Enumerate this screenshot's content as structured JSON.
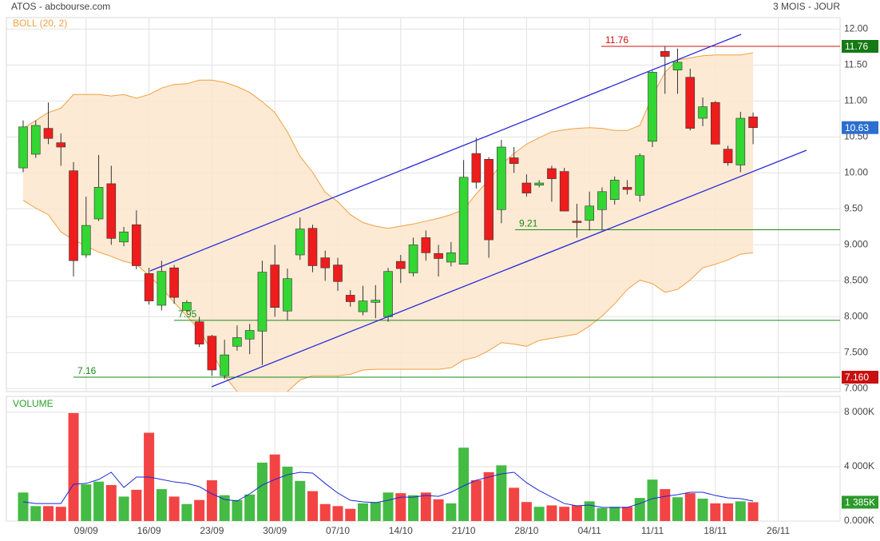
{
  "chart_data": {
    "type": "candlestick",
    "title": "ATOS - abcbourse.com",
    "subtitle": "3 MOIS - JOUR",
    "categories": [
      null,
      null,
      null,
      null,
      null,
      "09/09",
      null,
      null,
      null,
      null,
      "16/09",
      null,
      null,
      null,
      null,
      "23/09",
      null,
      null,
      null,
      null,
      "30/09",
      null,
      null,
      null,
      null,
      "07/10",
      null,
      null,
      null,
      null,
      "14/10",
      null,
      null,
      null,
      null,
      "21/10",
      null,
      null,
      null,
      null,
      "28/10",
      null,
      null,
      null,
      null,
      "04/11",
      null,
      null,
      null,
      null,
      "11/11",
      null,
      null,
      null,
      null,
      "18/11",
      null,
      null,
      null,
      null,
      "26/11"
    ],
    "open": [
      10.07,
      10.26,
      10.62,
      10.42,
      10.03,
      8.86,
      9.36,
      9.85,
      9.04,
      9.28,
      8.6,
      8.16,
      8.68,
      8.09,
      7.93,
      7.73,
      7.18,
      7.59,
      7.69,
      7.8,
      8.72,
      8.08,
      8.86,
      9.23,
      8.82,
      8.72,
      8.3,
      8.07,
      8.2,
      8.0,
      8.77,
      8.61,
      9.1,
      8.88,
      8.76,
      8.73,
      10.27,
      10.19,
      9.49,
      10.21,
      9.86,
      9.83,
      10.06,
      10.02,
      9.33,
      9.34,
      9.49,
      9.63,
      9.8,
      9.69,
      10.44,
      11.69,
      11.43,
      11.33,
      10.76,
      10.98,
      10.33,
      10.11,
      10.78,
      null,
      null
    ],
    "high": [
      10.73,
      10.73,
      10.98,
      10.55,
      10.15,
      9.67,
      10.25,
      10.1,
      9.25,
      9.48,
      8.68,
      8.78,
      8.72,
      8.23,
      8.0,
      7.75,
      7.68,
      7.88,
      7.9,
      8.78,
      9.0,
      8.67,
      9.38,
      9.28,
      8.92,
      8.82,
      8.37,
      8.43,
      8.44,
      8.68,
      8.86,
      9.1,
      9.2,
      9.0,
      9.04,
      10.18,
      10.49,
      10.22,
      10.46,
      10.36,
      9.98,
      9.9,
      10.1,
      10.07,
      9.57,
      9.74,
      9.8,
      9.95,
      9.9,
      10.27,
      11.42,
      11.76,
      11.73,
      11.45,
      11.05,
      11.0,
      10.38,
      10.85,
      10.84,
      null,
      null
    ],
    "low": [
      10.01,
      10.21,
      10.4,
      10.1,
      8.56,
      8.82,
      9.33,
      9.0,
      8.98,
      8.66,
      8.17,
      8.09,
      8.18,
      8.07,
      7.58,
      7.18,
      7.13,
      7.53,
      7.48,
      7.33,
      8.0,
      7.95,
      8.79,
      8.62,
      8.5,
      8.36,
      8.14,
      8.02,
      7.98,
      7.93,
      8.47,
      8.56,
      8.78,
      8.56,
      8.7,
      8.73,
      9.78,
      8.82,
      9.3,
      10.0,
      9.67,
      9.8,
      9.6,
      9.47,
      9.1,
      9.2,
      9.2,
      9.56,
      9.7,
      9.6,
      10.36,
      11.1,
      11.1,
      10.59,
      10.65,
      10.4,
      10.1,
      10.01,
      10.4,
      null,
      null
    ],
    "close": [
      10.64,
      10.66,
      10.48,
      10.36,
      8.78,
      9.27,
      9.8,
      9.09,
      9.18,
      8.71,
      8.22,
      8.63,
      8.27,
      8.2,
      7.62,
      7.26,
      7.47,
      7.71,
      7.81,
      8.62,
      8.13,
      8.53,
      9.22,
      8.71,
      8.68,
      8.49,
      8.21,
      8.22,
      8.23,
      8.63,
      8.67,
      9.0,
      8.89,
      8.81,
      8.89,
      9.94,
      9.87,
      9.07,
      10.36,
      10.13,
      9.72,
      9.86,
      9.92,
      9.47,
      9.31,
      9.54,
      9.74,
      9.9,
      9.77,
      10.24,
      11.4,
      11.62,
      11.54,
      10.62,
      10.92,
      10.4,
      10.14,
      10.76,
      10.63,
      null,
      null
    ],
    "up_color": "#33d633",
    "down_color": "#ee1c1c",
    "ylim": [
      6.96,
      12.16
    ],
    "yticks": [
      {
        "value": 7,
        "label": "7.000"
      },
      {
        "value": 7.5,
        "label": "7.500"
      },
      {
        "value": 8,
        "label": "8.000"
      },
      {
        "value": 8.5,
        "label": "8.500"
      },
      {
        "value": 9,
        "label": "9.000"
      },
      {
        "value": 9.5,
        "label": "9.50"
      },
      {
        "value": 10,
        "label": "10.00"
      },
      {
        "value": 10.5,
        "label": "10.50"
      },
      {
        "value": 11,
        "label": "11.00"
      },
      {
        "value": 11.5,
        "label": "11.50"
      },
      {
        "value": 12,
        "label": "12.00"
      }
    ],
    "grid": true,
    "bollinger": {
      "name": "BOLL (20, 2)",
      "color": "#f0a040",
      "upper": [
        10.62,
        10.73,
        10.84,
        10.9,
        11.09,
        11.09,
        11.09,
        11.07,
        11.09,
        11.04,
        11.09,
        11.18,
        11.23,
        11.24,
        11.29,
        11.29,
        11.26,
        11.2,
        11.12,
        10.99,
        10.84,
        10.57,
        10.23,
        10.01,
        9.73,
        9.6,
        9.42,
        9.31,
        9.26,
        9.23,
        9.26,
        9.29,
        9.33,
        9.37,
        9.42,
        9.49,
        9.71,
        9.9,
        10.12,
        10.27,
        10.4,
        10.49,
        10.57,
        10.6,
        10.62,
        10.63,
        10.62,
        10.59,
        10.59,
        10.66,
        11.07,
        11.4,
        11.57,
        11.6,
        11.63,
        11.64,
        11.64,
        11.64,
        11.67,
        null,
        null
      ],
      "lower": [
        9.62,
        9.51,
        9.42,
        9.18,
        9.07,
        8.98,
        8.9,
        8.84,
        8.77,
        8.73,
        8.57,
        8.4,
        8.2,
        8.01,
        7.82,
        7.51,
        7.18,
        6.96,
        6.88,
        6.84,
        6.87,
        6.96,
        7.12,
        7.18,
        7.18,
        7.18,
        7.2,
        7.26,
        7.27,
        7.27,
        7.27,
        7.27,
        7.27,
        7.27,
        7.29,
        7.4,
        7.44,
        7.53,
        7.64,
        7.62,
        7.59,
        7.67,
        7.7,
        7.73,
        7.76,
        7.87,
        8.01,
        8.18,
        8.38,
        8.51,
        8.46,
        8.34,
        8.38,
        8.51,
        8.68,
        8.73,
        8.79,
        8.87,
        8.89,
        null,
        null
      ]
    },
    "levels": [
      {
        "label": "7.16",
        "value": 7.16,
        "color": "#1a8a1a"
      },
      {
        "label": "7.95",
        "value": 7.95,
        "color": "#1a8a1a"
      },
      {
        "label": "9.21",
        "value": 9.21,
        "color": "#1a8a1a"
      },
      {
        "label": "11.76",
        "value": 11.76,
        "color": "#d01010"
      }
    ],
    "price_tags": [
      {
        "label": "11.76",
        "value": 11.76,
        "color": "#157a15"
      },
      {
        "label": "10.63",
        "value": 10.63,
        "color": "#2a6fd0"
      },
      {
        "label": "7.160",
        "value": 7.16,
        "color": "#c81010"
      }
    ],
    "volume": {
      "name": "VOLUME",
      "values": [
        2100,
        1100,
        1100,
        1050,
        7950,
        2700,
        2900,
        2650,
        1800,
        2300,
        6500,
        2350,
        1800,
        1250,
        1550,
        3000,
        1900,
        1550,
        1950,
        4300,
        4900,
        4000,
        2950,
        2200,
        1250,
        1100,
        900,
        1300,
        1400,
        2100,
        2050,
        1900,
        2100,
        1600,
        1300,
        5400,
        3000,
        3600,
        4100,
        2450,
        1400,
        1050,
        1150,
        1050,
        1150,
        1450,
        950,
        1050,
        1050,
        1700,
        3050,
        2350,
        1750,
        2050,
        1650,
        1300,
        1300,
        1450,
        1385,
        null,
        null
      ],
      "average": [
        1410,
        1290,
        1290,
        1290,
        2710,
        2770,
        3060,
        3590,
        2470,
        3240,
        3240,
        3060,
        2880,
        2770,
        2530,
        2000,
        1590,
        1470,
        2000,
        2650,
        3060,
        3410,
        3590,
        3530,
        2770,
        2060,
        1530,
        1410,
        1350,
        1530,
        1760,
        1760,
        1880,
        1820,
        2120,
        2590,
        3000,
        3240,
        3470,
        3590,
        2820,
        2240,
        1760,
        1290,
        1120,
        1180,
        1000,
        1000,
        1000,
        1290,
        1650,
        1820,
        1940,
        2120,
        2120,
        1880,
        1710,
        1650,
        1470,
        null,
        null
      ],
      "average_color": "#1a28d8",
      "up_color": "#44bb44",
      "down_color": "#f24444",
      "ylim": [
        0,
        9180
      ],
      "yticks": [
        {
          "value": 0,
          "label": "0.000K"
        },
        {
          "value": 4000,
          "label": "4 000K"
        },
        {
          "value": 8000,
          "label": "8 000K"
        }
      ],
      "tag": {
        "label": "1 385K",
        "value": 1385,
        "color": "#2a9a2a"
      }
    }
  }
}
